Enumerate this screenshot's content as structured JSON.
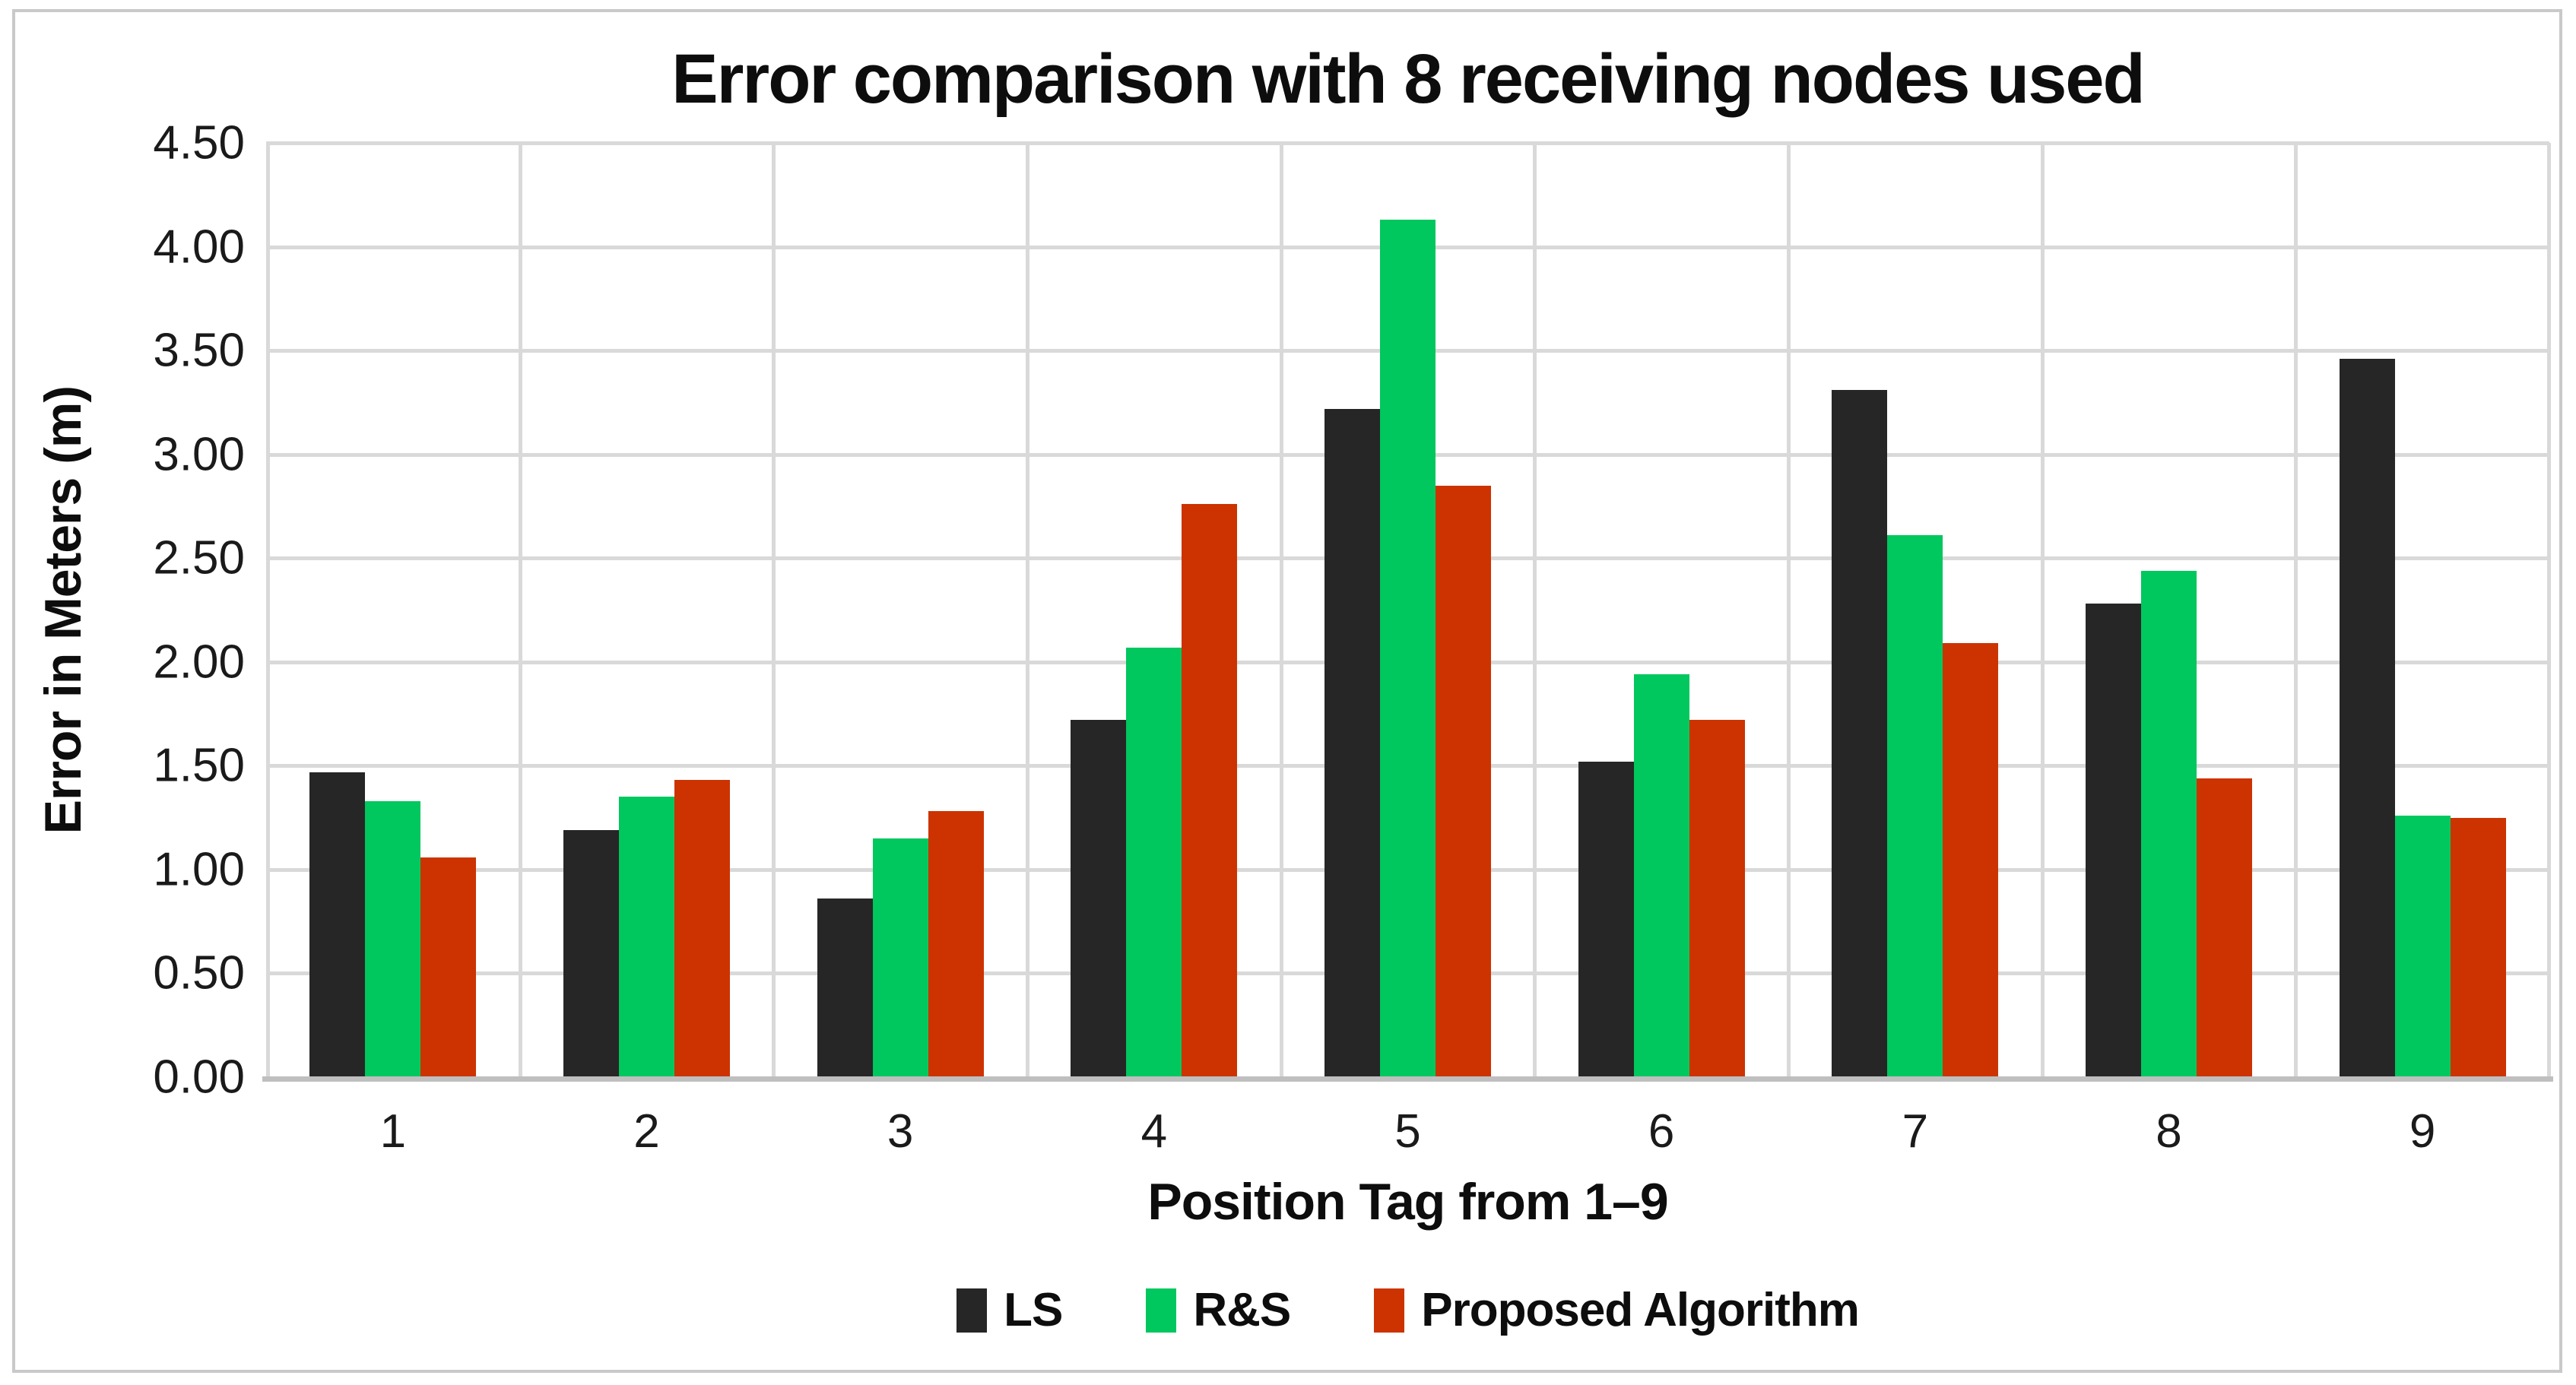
{
  "figure": {
    "background": "#ffffff",
    "border_color": "#c9c9c9"
  },
  "chart_data": {
    "type": "bar",
    "title": "Error comparison with 8 receiving nodes used",
    "xlabel": "Position Tag from 1–9",
    "ylabel": "Error in Meters (m)",
    "categories": [
      "1",
      "2",
      "3",
      "4",
      "5",
      "6",
      "7",
      "8",
      "9"
    ],
    "series": [
      {
        "name": "LS",
        "color": "#262626",
        "values": [
          1.47,
          1.19,
          0.86,
          1.72,
          3.22,
          1.52,
          3.31,
          2.28,
          3.46
        ]
      },
      {
        "name": "R&S",
        "color": "#00c75e",
        "values": [
          1.33,
          1.35,
          1.15,
          2.07,
          4.13,
          1.94,
          2.61,
          2.44,
          1.26
        ]
      },
      {
        "name": "Proposed Algorithm",
        "color": "#cc3300",
        "values": [
          1.06,
          1.43,
          1.28,
          2.76,
          2.85,
          1.72,
          2.09,
          1.44,
          1.25
        ]
      }
    ],
    "ylim": [
      0,
      4.5
    ],
    "ytick_step": 0.5,
    "ytick_labels": [
      "0.00",
      "0.50",
      "1.00",
      "1.50",
      "2.00",
      "2.50",
      "3.00",
      "3.50",
      "4.00",
      "4.50"
    ],
    "grid": true,
    "gridline_color": "#d9d9d9",
    "axis_line_color": "#bfbfbf",
    "legend_position": "bottom"
  }
}
